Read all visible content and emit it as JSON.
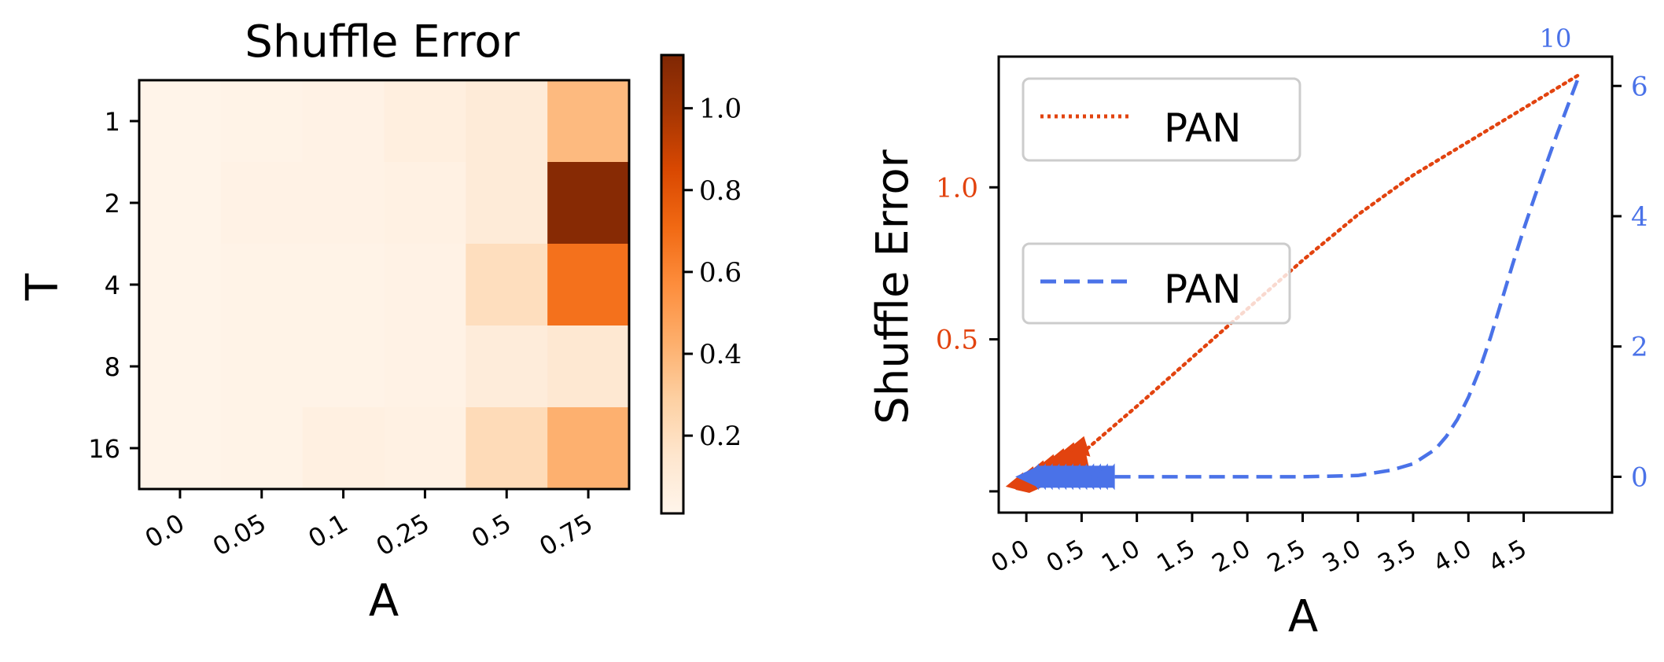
{
  "chart_data": [
    {
      "type": "heatmap",
      "title": "Shuffle Error",
      "xlabel": "A",
      "ylabel": "T",
      "x_categories": [
        "0.0",
        "0.05",
        "0.1",
        "0.25",
        "0.5",
        "0.75"
      ],
      "y_categories": [
        "1",
        "2",
        "4",
        "8",
        "16"
      ],
      "values": [
        [
          0.02,
          0.03,
          0.04,
          0.07,
          0.1,
          0.38
        ],
        [
          0.02,
          0.04,
          0.04,
          0.05,
          0.1,
          1.1
        ],
        [
          0.02,
          0.03,
          0.03,
          0.04,
          0.2,
          0.68
        ],
        [
          0.02,
          0.03,
          0.03,
          0.04,
          0.09,
          0.13
        ],
        [
          0.02,
          0.03,
          0.06,
          0.05,
          0.22,
          0.42
        ]
      ],
      "colormap": "Oranges",
      "vmin": 0.01,
      "vmax": 1.13,
      "colorbar_ticks": [
        "0.2",
        "0.4",
        "0.6",
        "0.8",
        "1.0"
      ]
    },
    {
      "type": "line",
      "xlabel": "A",
      "ylabel": "Shuffle Error",
      "xlim": [
        -0.25,
        5.3
      ],
      "ylim_left": [
        -0.07,
        1.43
      ],
      "ylim_right": [
        -0.55,
        6.45
      ],
      "x_ticks": [
        "0.0",
        "0.5",
        "1.0",
        "1.5",
        "2.0",
        "2.5",
        "3.0",
        "3.5",
        "4.0",
        "4.5"
      ],
      "y_ticks_left": [
        "0.5",
        "1.0"
      ],
      "y_ticks_right": [
        "0",
        "2",
        "4",
        "6"
      ],
      "right_axis_offset_label": "10",
      "series": [
        {
          "name": "PAN",
          "axis": "left",
          "color": "#e2430f",
          "style": "dotted",
          "x": [
            0.55,
            1.0,
            1.5,
            2.0,
            2.5,
            3.0,
            3.5,
            4.0,
            4.5,
            5.0
          ],
          "y": [
            0.14,
            0.28,
            0.44,
            0.6,
            0.76,
            0.91,
            1.04,
            1.15,
            1.26,
            1.37
          ]
        },
        {
          "name": "PAN",
          "axis": "right",
          "color": "#4a72e8",
          "style": "dashed",
          "x": [
            0.8,
            1.0,
            1.5,
            2.0,
            2.5,
            3.0,
            3.3,
            3.5,
            3.7,
            3.8,
            3.9,
            4.0,
            4.1,
            4.2,
            4.3,
            4.4,
            4.5,
            4.6,
            4.7,
            4.8,
            4.9,
            5.0
          ],
          "y": [
            0,
            0,
            0,
            0,
            0,
            0.02,
            0.1,
            0.2,
            0.42,
            0.62,
            0.88,
            1.22,
            1.64,
            2.14,
            2.7,
            3.26,
            3.8,
            4.3,
            4.78,
            5.25,
            5.7,
            6.15
          ]
        }
      ],
      "arrow_markers": [
        {
          "color": "#e2430f",
          "x_from": 0.55,
          "x_to": -0.1,
          "y_from": 0.14,
          "y_to": 0.0
        },
        {
          "color": "#4a72e8",
          "x_from": 0.8,
          "x_to": -0.1,
          "y": 0.0
        }
      ]
    }
  ]
}
